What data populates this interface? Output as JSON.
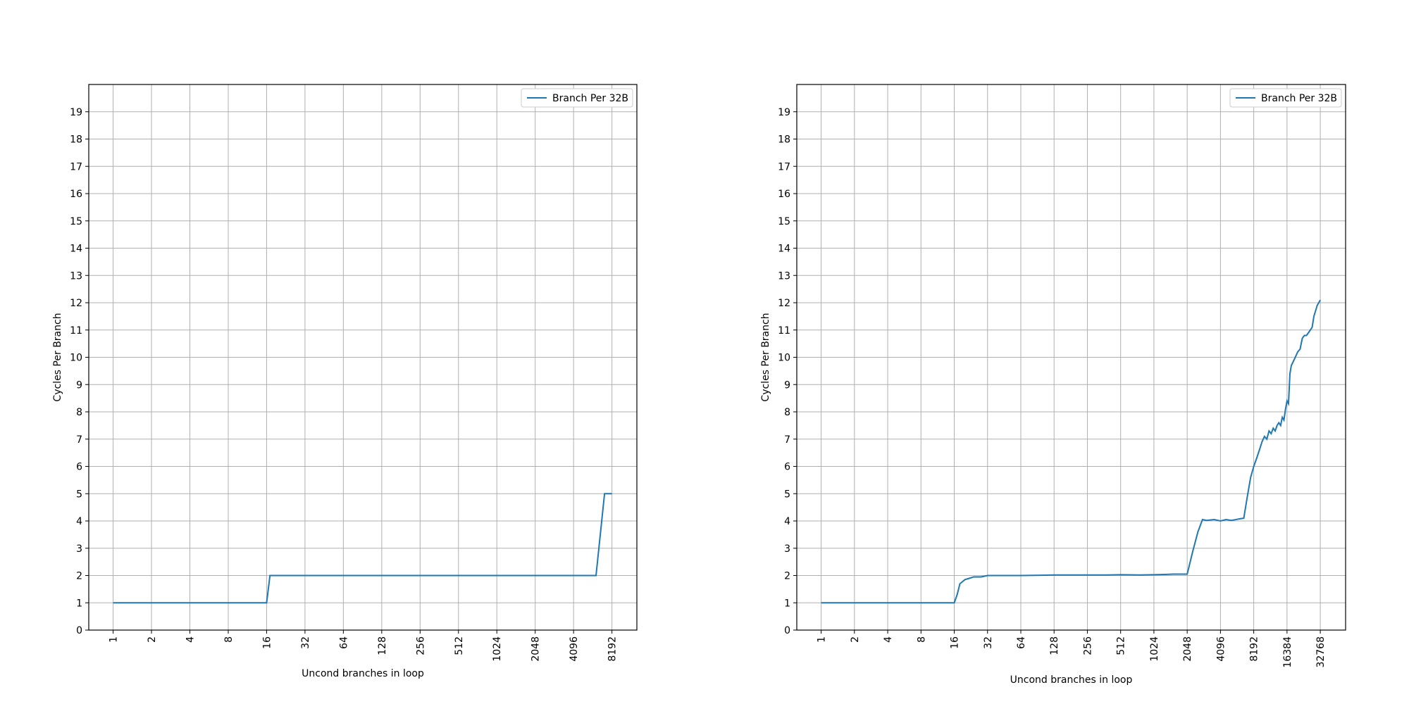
{
  "chart_data": [
    {
      "type": "line",
      "xscale": "log2",
      "xlabel": "Uncond branches in loop",
      "ylabel": "Cycles Per Branch",
      "x": [
        1,
        16,
        17,
        6144,
        7168,
        8192
      ],
      "series": [
        {
          "name": "Branch Per 32B",
          "color": "#1f77b4",
          "values": [
            1,
            1,
            2,
            2,
            5,
            5
          ]
        }
      ],
      "xlim": [
        0.644,
        12850
      ],
      "xticks": [
        1,
        2,
        4,
        8,
        16,
        32,
        64,
        128,
        256,
        512,
        1024,
        2048,
        4096,
        8192
      ],
      "ylim": [
        0,
        20
      ],
      "yticks": [
        0,
        1,
        2,
        3,
        4,
        5,
        6,
        7,
        8,
        9,
        10,
        11,
        12,
        13,
        14,
        15,
        16,
        17,
        18,
        19
      ],
      "grid": true,
      "legend": "upper-right"
    },
    {
      "type": "line",
      "xscale": "log2",
      "xlabel": "Uncond branches in loop",
      "ylabel": "Cycles Per Branch",
      "x": [
        1,
        16,
        17,
        18,
        20,
        22,
        24,
        28,
        32,
        48,
        64,
        96,
        128,
        192,
        256,
        384,
        512,
        768,
        1024,
        1280,
        1536,
        1792,
        2048,
        2304,
        2560,
        2816,
        3072,
        3584,
        4096,
        4608,
        5120,
        5632,
        6144,
        6656,
        7168,
        7680,
        8192,
        8704,
        9216,
        9728,
        10240,
        10752,
        11264,
        11776,
        12288,
        12800,
        13312,
        13824,
        14336,
        14848,
        15360,
        15872,
        16384,
        16896,
        17408,
        17920,
        18432,
        19456,
        20480,
        21504,
        22528,
        23552,
        24576,
        25600,
        26624,
        27648,
        28672,
        29696,
        30720,
        31744,
        32768
      ],
      "series": [
        {
          "name": "Branch Per 32B",
          "color": "#1f77b4",
          "values": [
            1,
            1,
            1.3,
            1.7,
            1.85,
            1.9,
            1.95,
            1.95,
            2.0,
            2.0,
            2.0,
            2.01,
            2.02,
            2.02,
            2.02,
            2.02,
            2.03,
            2.02,
            2.03,
            2.04,
            2.05,
            2.05,
            2.05,
            2.9,
            3.6,
            4.05,
            4.02,
            4.05,
            4.0,
            4.05,
            4.02,
            4.05,
            4.08,
            4.1,
            4.9,
            5.6,
            6.0,
            6.3,
            6.6,
            6.9,
            7.1,
            7.0,
            7.3,
            7.2,
            7.4,
            7.3,
            7.5,
            7.6,
            7.5,
            7.8,
            7.7,
            8.1,
            8.4,
            8.3,
            9.4,
            9.7,
            9.8,
            10.0,
            10.2,
            10.3,
            10.7,
            10.8,
            10.8,
            10.9,
            11.0,
            11.1,
            11.5,
            11.7,
            11.9,
            12.0,
            12.1
          ]
        }
      ],
      "xlim": [
        0.602,
        55500
      ],
      "xticks": [
        1,
        2,
        4,
        8,
        16,
        32,
        64,
        128,
        256,
        512,
        1024,
        2048,
        4096,
        8192,
        16384,
        32768
      ],
      "ylim": [
        0,
        20
      ],
      "yticks": [
        0,
        1,
        2,
        3,
        4,
        5,
        6,
        7,
        8,
        9,
        10,
        11,
        12,
        13,
        14,
        15,
        16,
        17,
        18,
        19
      ],
      "grid": true,
      "legend": "upper-right"
    }
  ]
}
